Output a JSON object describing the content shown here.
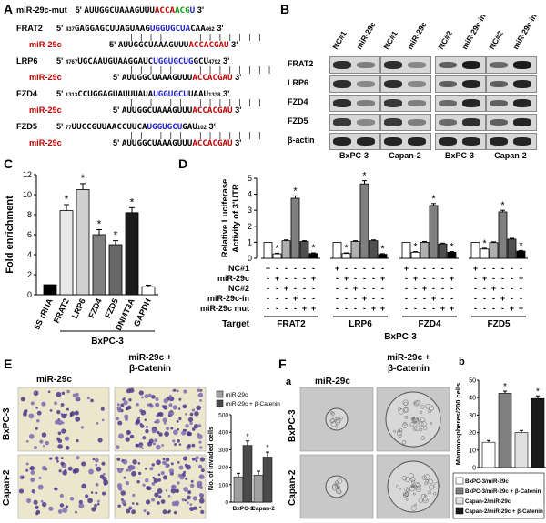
{
  "panels": {
    "a": "A",
    "b": "B",
    "c": "C",
    "d": "D",
    "e": "E",
    "f": "F",
    "f_sub_a": "a",
    "f_sub_b": "b"
  },
  "panel_a": {
    "mut": {
      "label": "miR-29c-mut",
      "p5": "5'",
      "seq_black": "AUUGGCUAAAGUUU",
      "seq_red": "ACCA",
      "seq_green": "ACG",
      "seq_blue": "U",
      "p3": "3'"
    },
    "targets": [
      {
        "gene": "FRAT2",
        "start": "437",
        "pre": "GAGGAGCUUAGUAAG",
        "blue": "UGGUGCUA",
        "post": "CAA",
        "end": "462",
        "pairs": "| | | |       | | | | | | |"
      },
      {
        "gene": "LRP6",
        "start": "4767",
        "pre": "UGCAAUGUAAGGAUC",
        "blue": "UGGUGCUG",
        "post": "GCU",
        "end": "4792",
        "pairs": "| | | | |     | | | | | | | |"
      },
      {
        "gene": "FZD4",
        "start": "1313",
        "pre": "CCUGGAGUAUUUAUA",
        "blue": "UGGUGCU",
        "post": "UAAU",
        "end": "1338",
        "pairs": "|   |   | |   | | | | | | |"
      },
      {
        "gene": "FZD5",
        "start": "77",
        "pre": "UUCCGUUAACCUUCA",
        "blue": "UGGUGCU",
        "post": "GAU",
        "end": "102",
        "pairs": "| |   | | |   | | | | | | |"
      }
    ],
    "mir": {
      "label": "miR-29c",
      "p5": "5'",
      "seq_black": "AUUGGCUAAAGUUU",
      "seq_red": "ACCACGAU",
      "p3": "3'"
    }
  },
  "panel_b": {
    "rows": [
      "FRAT2",
      "LRP6",
      "FZD4",
      "FZD5",
      "β-actin"
    ],
    "lanes": [
      "NC#1",
      "miR-29c",
      "NC#1",
      "miR-29c",
      "NC#2",
      "miR-29c-in",
      "NC#2",
      "miR-29c-in"
    ],
    "cells": [
      "BxPC-3",
      "Capan-2",
      "BxPC-3",
      "Capan-2"
    ],
    "band_intensity": [
      [
        0.85,
        0.45,
        0.85,
        0.4,
        0.6,
        0.95,
        0.55,
        0.95
      ],
      [
        0.85,
        0.4,
        0.85,
        0.4,
        0.6,
        0.9,
        0.6,
        0.9
      ],
      [
        0.85,
        0.45,
        0.8,
        0.45,
        0.55,
        0.9,
        0.6,
        0.9
      ],
      [
        0.8,
        0.4,
        0.8,
        0.45,
        0.55,
        0.85,
        0.6,
        0.9
      ],
      [
        0.9,
        0.9,
        0.9,
        0.9,
        0.9,
        0.9,
        0.9,
        0.9
      ]
    ]
  },
  "chart_data": [
    {
      "id": "C",
      "type": "bar",
      "categories": [
        "5S rRNA",
        "FRAT2",
        "LRP6",
        "FZD4",
        "FZD5",
        "DNMT3A",
        "GAPDH"
      ],
      "values": [
        1,
        8.4,
        10.5,
        6.0,
        5.0,
        8.2,
        0.8
      ],
      "errors": [
        0,
        0.6,
        0.6,
        0.5,
        0.4,
        0.5,
        0.15
      ],
      "significant": [
        false,
        true,
        true,
        true,
        true,
        true,
        false
      ],
      "colors": [
        "#000000",
        "#e8e8e8",
        "#d0d0d0",
        "#808080",
        "#686868",
        "#1a1a1a",
        "#ffffff"
      ],
      "ylabel": "Fold enrichment",
      "xgroup": "BxPC-3",
      "ylim": [
        0,
        12
      ],
      "yticks": [
        0,
        2,
        4,
        6,
        8,
        10,
        12
      ],
      "star": "*"
    },
    {
      "id": "D",
      "type": "bar",
      "ylabel_line1": "Relative Luciferase",
      "ylabel_line2": "Activity of 3'UTR",
      "ylim": [
        0,
        5
      ],
      "yticks": [
        0,
        1,
        2,
        3,
        4,
        5
      ],
      "groups": [
        {
          "name": "FRAT2",
          "values": [
            1,
            0.28,
            1.1,
            3.75,
            1.05,
            0.3
          ],
          "errors": [
            0,
            0.04,
            0.05,
            0.15,
            0.05,
            0.04
          ],
          "significant": [
            false,
            true,
            false,
            true,
            false,
            true
          ]
        },
        {
          "name": "LRP6",
          "values": [
            1,
            0.3,
            1.05,
            4.65,
            1.1,
            0.25
          ],
          "errors": [
            0,
            0.04,
            0.05,
            0.2,
            0.05,
            0.04
          ],
          "significant": [
            false,
            true,
            false,
            true,
            false,
            true
          ]
        },
        {
          "name": "FZD4",
          "values": [
            1,
            0.38,
            1.0,
            3.3,
            0.9,
            0.38
          ],
          "errors": [
            0,
            0.04,
            0.05,
            0.12,
            0.05,
            0.04
          ],
          "significant": [
            false,
            true,
            false,
            true,
            false,
            true
          ]
        },
        {
          "name": "FZD5",
          "values": [
            1,
            0.58,
            0.98,
            2.9,
            1.2,
            0.45
          ],
          "errors": [
            0,
            0.05,
            0.05,
            0.1,
            0.05,
            0.04
          ],
          "significant": [
            false,
            true,
            false,
            true,
            false,
            true
          ]
        }
      ],
      "bar_colors": [
        "#ffffff",
        "#ffffff",
        "#b0b0b0",
        "#808080",
        "#505050",
        "#000000"
      ],
      "design_rows": [
        {
          "label": "NC#1",
          "signs": [
            "+",
            "-",
            "-",
            "-",
            "-",
            "-"
          ]
        },
        {
          "label": "miR-29c",
          "signs": [
            "-",
            "+",
            "-",
            "-",
            "-",
            "+"
          ]
        },
        {
          "label": "NC#2",
          "signs": [
            "-",
            "-",
            "+",
            "-",
            "-",
            "-"
          ]
        },
        {
          "label": "miR-29c-in",
          "signs": [
            "-",
            "-",
            "-",
            "+",
            "-",
            "-"
          ]
        },
        {
          "label": "miR-29c mut",
          "signs": [
            "-",
            "-",
            "-",
            "-",
            "+",
            "+"
          ]
        }
      ],
      "target_label": "Target",
      "xgroup": "BxPC-3",
      "star": "*"
    },
    {
      "id": "E",
      "type": "bar",
      "categories": [
        "BxPC-3",
        "Capan-2"
      ],
      "series": [
        {
          "name": "miR-29c",
          "values": [
            145,
            155
          ],
          "errors": [
            20,
            22
          ],
          "color": "#a0a0a0"
        },
        {
          "name": "miR-29c + β-Catenin",
          "values": [
            325,
            258
          ],
          "errors": [
            25,
            28
          ],
          "color": "#4a4a4a",
          "significant": [
            true,
            true
          ]
        }
      ],
      "ylabel": "No. of invaded cells",
      "ylim": [
        0,
        500
      ],
      "yticks": [
        0,
        100,
        200,
        300,
        400,
        500
      ],
      "star": "*"
    },
    {
      "id": "F-b",
      "type": "bar",
      "categories": [
        "BxPC-3/miR-29c",
        "BxPC-3/miR-29c + β-Catenin",
        "Capan-2/miR-29c",
        "Capan-2/miR-29c + β-Catenin"
      ],
      "values": [
        14.5,
        42.5,
        20,
        39.5
      ],
      "errors": [
        1.0,
        1.2,
        1.2,
        1.5
      ],
      "significant": [
        false,
        true,
        false,
        true
      ],
      "colors": [
        "#ffffff",
        "#808080",
        "#e0e0e0",
        "#1a1a1a"
      ],
      "ylabel": "Mammospheres/200 cells",
      "ylim": [
        0,
        50
      ],
      "yticks": [
        0,
        10,
        20,
        30,
        40,
        50
      ],
      "star": "*"
    }
  ],
  "panel_e": {
    "col1": "miR-29c",
    "col2_line1": "miR-29c +",
    "col2_line2": "β-Catenin",
    "row1": "BxPC-3",
    "row2": "Capan-2"
  },
  "panel_f": {
    "col1": "miR-29c",
    "col2_line1": "miR-29c +",
    "col2_line2": "β-Catenin",
    "row1": "BxPC-3",
    "row2": "Capan-2"
  }
}
